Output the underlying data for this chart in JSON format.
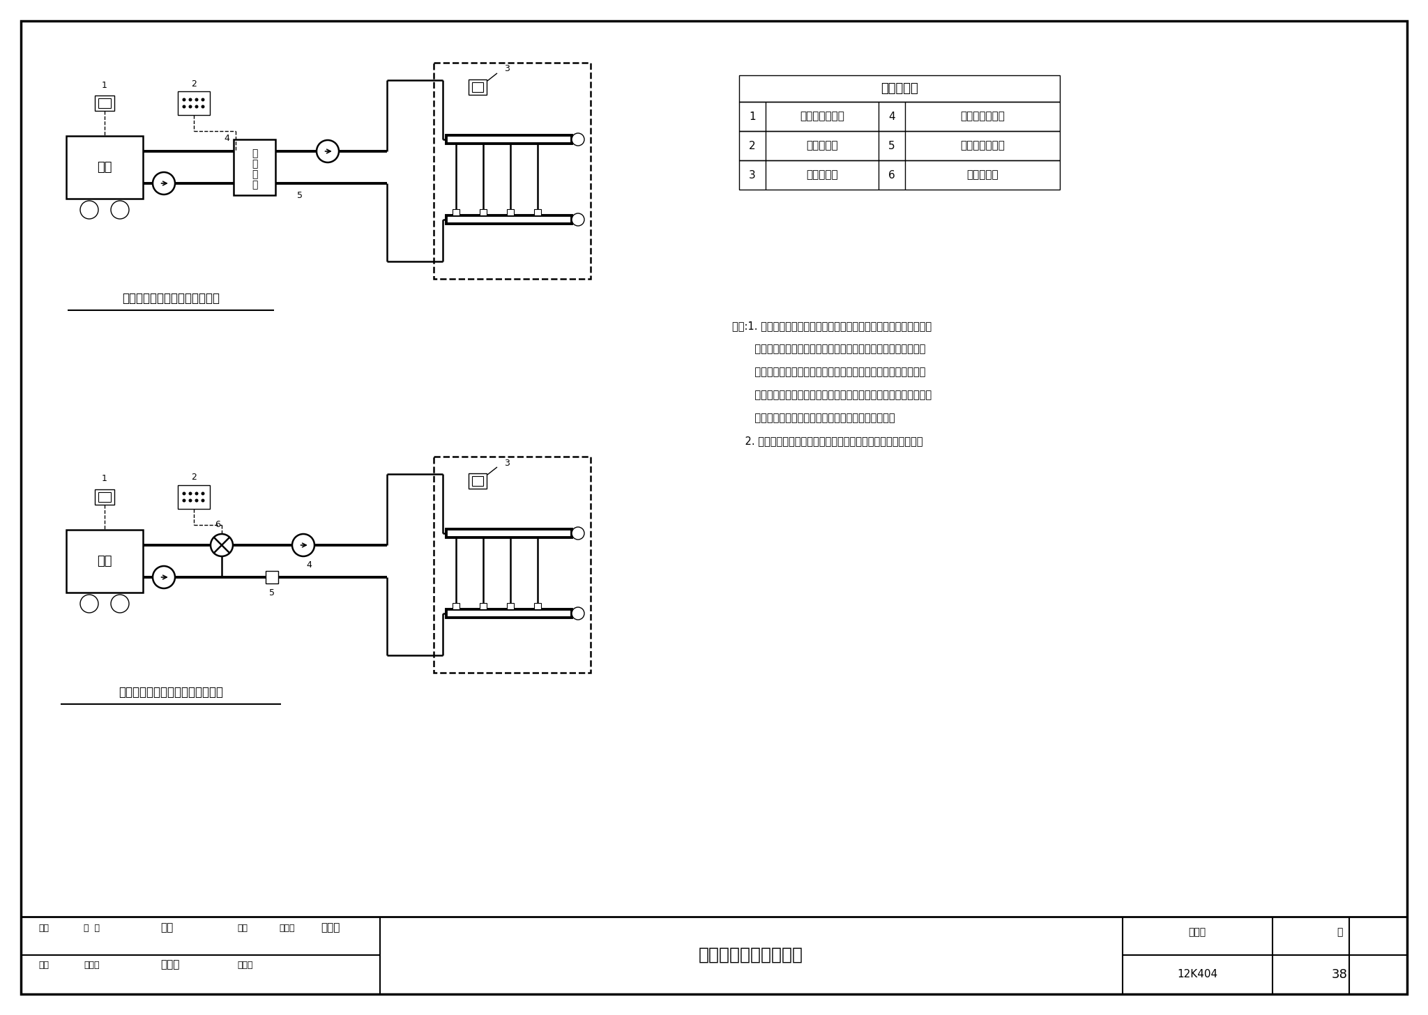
{
  "title": "气候补偿器温控示意图",
  "title_atlas": "图集号",
  "atlas_number": "12K404",
  "page_label": "页",
  "page_number": "38",
  "diagram1_title": "带气候补偿的换热器系统温控图",
  "diagram2_title": "带气候补偿的三通混水系统温控图",
  "equipment_table_title": "主要设备表",
  "equipment_items": [
    {
      "num": "1",
      "name": "室外温度传感器",
      "num2": "4",
      "name2": "供水温度传感器"
    },
    {
      "num": "2",
      "name": "气候补偿器",
      "num2": "5",
      "name2": "回水温度传感器"
    },
    {
      "num": "3",
      "name": "室内温控器",
      "num2": "6",
      "name2": "热电三通阀"
    }
  ],
  "note_lines": [
    "说明:1. 气候补偿器的工作原理是根据室外温度的动态变化和其内部设定",
    "       的不同条件下的工作曲线，与实测的供水温度、室内温度等进行",
    "       比较，求出恰当的供暖供水温度，自动调节一次系统流量或热源",
    "       出力（如控制燃气壁挂炉燃烧器），来控制二次系统的供水温度，",
    "       满足用户用热负荷要求，保持室内温度稳定、舒适。",
    "    2. 本图为示意图，分集水器、配管及配件（虚线框内）为简图。"
  ],
  "bg_color": "#ffffff"
}
